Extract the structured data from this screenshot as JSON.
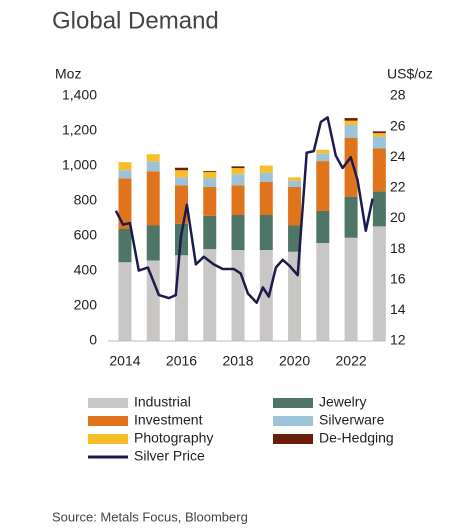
{
  "chart_data": {
    "type": "bar",
    "title": "Global Demand",
    "y_label": "Moz",
    "y2_label": "US$/oz",
    "source": "Source: Metals Focus, Bloomberg",
    "x": [
      2014,
      2015,
      2016,
      2017,
      2018,
      2019,
      2020,
      2021,
      2022,
      2023
    ],
    "xlim": [
      2013.4,
      2023.2
    ],
    "xticks": [
      2014,
      2016,
      2018,
      2020,
      2022
    ],
    "ylim": [
      0,
      1400
    ],
    "yticks": [
      0,
      200,
      400,
      600,
      800,
      {
        "value": 1000,
        "label": "1,000"
      },
      {
        "value": 1200,
        "label": "1,200"
      },
      {
        "value": 1400,
        "label": "1,400"
      }
    ],
    "y2lim": [
      12,
      28
    ],
    "y2ticks": [
      12,
      14,
      16,
      18,
      20,
      22,
      24,
      26,
      28
    ],
    "series": [
      {
        "name": "Industrial",
        "color": "#c9c7c5",
        "values": [
          450,
          460,
          490,
          525,
          520,
          520,
          510,
          560,
          590,
          655
        ]
      },
      {
        "name": "Jewelry",
        "color": "#4e7565",
        "values": [
          190,
          200,
          180,
          190,
          200,
          200,
          150,
          183,
          235,
          200
        ]
      },
      {
        "name": "Investment",
        "color": "#e0741c",
        "values": [
          290,
          310,
          220,
          165,
          170,
          190,
          220,
          285,
          335,
          245
        ]
      },
      {
        "name": "Silverware",
        "color": "#9dc3d8",
        "values": [
          46,
          57,
          46,
          51,
          63,
          52,
          35,
          45,
          74,
          68
        ]
      },
      {
        "name": "Photography",
        "color": "#f7be2a",
        "values": [
          46,
          40,
          40,
          35,
          35,
          40,
          20,
          20,
          25,
          20
        ]
      },
      {
        "name": "De-Hedging",
        "color": "#6b1f0a",
        "values": [
          0,
          0,
          14,
          5,
          10,
          0,
          0,
          0,
          15,
          10
        ]
      },
      {
        "name": "Silver Price",
        "type": "line",
        "axis": "y2",
        "color": "#1b1b4d",
        "x": [
          2013.68,
          2013.93,
          2014.18,
          2014.49,
          2014.81,
          2015.2,
          2015.55,
          2015.8,
          2015.98,
          2016.19,
          2016.51,
          2016.79,
          2017.14,
          2017.46,
          2017.85,
          2018.1,
          2018.35,
          2018.66,
          2018.88,
          2019.09,
          2019.34,
          2019.58,
          2019.83,
          2020.11,
          2020.43,
          2020.68,
          2020.93,
          2021.17,
          2021.46,
          2021.7,
          2021.99,
          2022.23,
          2022.52,
          2022.76
        ],
        "values": [
          20.5,
          19.6,
          19.7,
          16.6,
          16.8,
          15.0,
          14.8,
          15.0,
          18.8,
          20.9,
          17.0,
          17.5,
          17.0,
          16.7,
          16.7,
          16.4,
          15.1,
          14.5,
          15.5,
          14.9,
          16.8,
          17.3,
          16.9,
          16.3,
          24.3,
          24.4,
          26.3,
          26.6,
          24.1,
          23.3,
          24.0,
          22.5,
          19.2,
          21.3
        ]
      }
    ]
  }
}
